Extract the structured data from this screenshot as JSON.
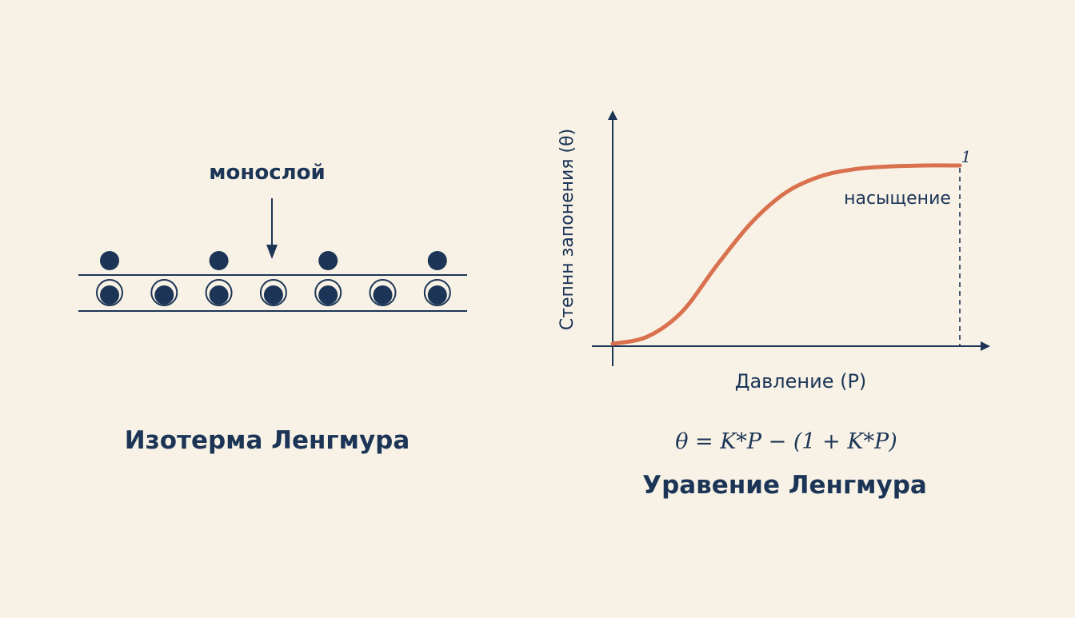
{
  "diagram": {
    "monolayer_label": "монослой",
    "title": "Изотерма Ленгмура",
    "top_particles": [
      1,
      3,
      5,
      7
    ],
    "layer_particle_count": 7
  },
  "chart": {
    "y_axis_label": "Степнн запонения (θ)",
    "x_axis_label": "Давление (P)",
    "saturation_label": "насыщение",
    "saturation_value": "1",
    "equation": "θ = K*P − (1 + K*P)",
    "title": "Уравение Ленгмура"
  },
  "colors": {
    "background": "#f7f2e5",
    "ink": "#1c3557",
    "curve": "#d9704e"
  },
  "chart_data": {
    "type": "line",
    "title": "Уравение Ленгмура",
    "xlabel": "Давление (P)",
    "ylabel": "Степнн запонения (θ)",
    "ylim": [
      0,
      1
    ],
    "series": [
      {
        "x": [
          0,
          0.1,
          0.2,
          0.3,
          0.4,
          0.5,
          0.6,
          0.7,
          0.8,
          0.9,
          1.0
        ],
        "values": [
          0.0,
          0.04,
          0.18,
          0.44,
          0.68,
          0.85,
          0.94,
          0.98,
          0.995,
          1.0,
          1.0
        ]
      }
    ],
    "annotations": [
      {
        "text": "насыщение",
        "at": "plateau"
      },
      {
        "text": "1",
        "at": "y=1 at right edge"
      }
    ],
    "grid": false
  }
}
